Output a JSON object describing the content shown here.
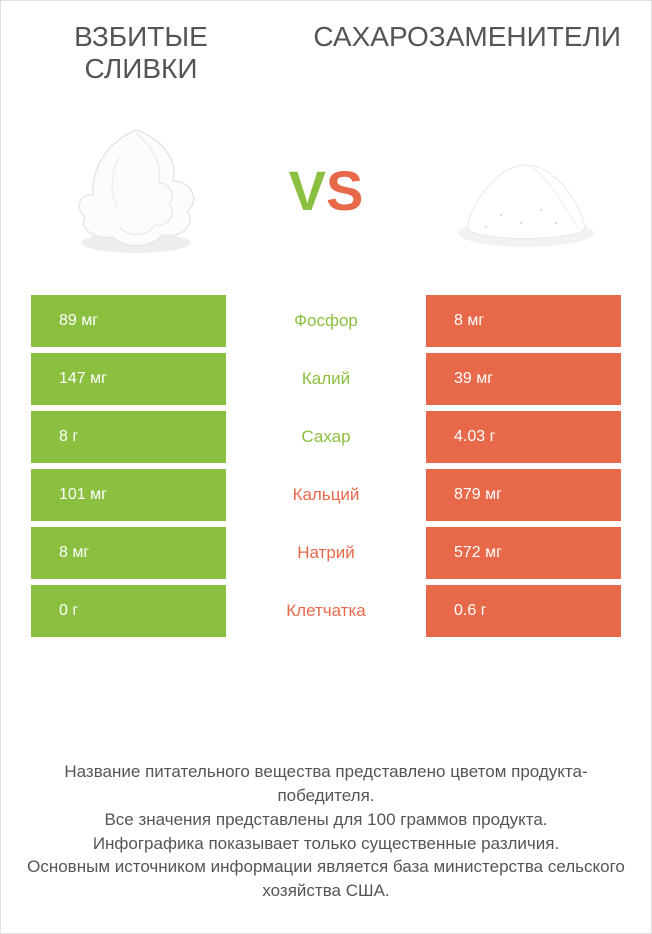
{
  "colors": {
    "green": "#8bbf3f",
    "orange": "#e8694a",
    "text": "#555555",
    "white": "#ffffff"
  },
  "left_title": "Взбитые сливки",
  "right_title": "Сахарозаменители",
  "vs": {
    "v": "V",
    "s": "S"
  },
  "rows": [
    {
      "left": "89 мг",
      "mid": "Фосфор",
      "right": "8 мг",
      "winner": "left"
    },
    {
      "left": "147 мг",
      "mid": "Калий",
      "right": "39 мг",
      "winner": "left"
    },
    {
      "left": "8 г",
      "mid": "Сахар",
      "right": "4.03 г",
      "winner": "left"
    },
    {
      "left": "101 мг",
      "mid": "Кальций",
      "right": "879 мг",
      "winner": "right"
    },
    {
      "left": "8 мг",
      "mid": "Натрий",
      "right": "572 мг",
      "winner": "right"
    },
    {
      "left": "0 г",
      "mid": "Клетчатка",
      "right": "0.6 г",
      "winner": "right"
    }
  ],
  "footer_lines": [
    "Название питательного вещества представлено цветом продукта-победителя.",
    "Все значения представлены для 100 граммов продукта.",
    "Инфографика показывает только существенные различия.",
    "Основным источником информации является база министерства сельского хозяйства США."
  ]
}
